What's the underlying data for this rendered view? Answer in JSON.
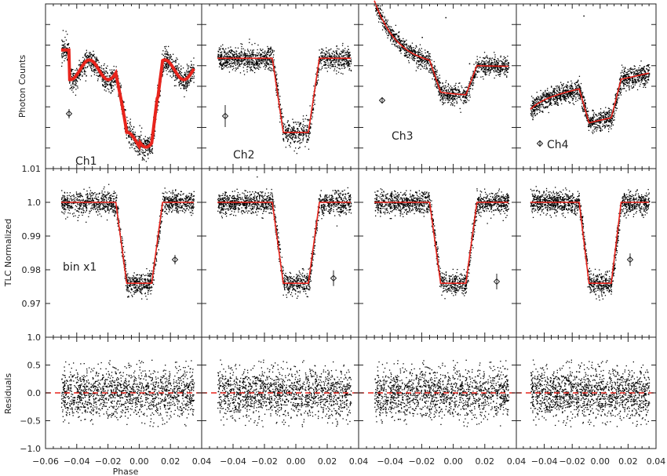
{
  "chart_data": {
    "type": "scatter",
    "xlabel": "Phase",
    "xlim": [
      -0.06,
      0.04
    ],
    "x_ticks": [
      "−0.06",
      "−0.04",
      "−0.02",
      "0.00",
      "0.02",
      "0.04"
    ],
    "x_tick_values": [
      -0.06,
      -0.04,
      -0.02,
      0.0,
      0.02,
      0.04
    ],
    "data_x_range": [
      -0.05,
      0.035
    ],
    "data_colors": {
      "points": "#000000",
      "model": "#e8241c",
      "zero_line": "#e8241c"
    },
    "channels": [
      "Ch1",
      "Ch2",
      "Ch3",
      "Ch4"
    ],
    "rows": [
      {
        "id": "raw",
        "ylabel": "Photon Counts",
        "ticks_labeled": false,
        "panels": [
          {
            "label": "Ch1",
            "model": "red band"
          },
          {
            "label": "Ch2",
            "model": "red line"
          },
          {
            "label": "Ch3",
            "model": "red line"
          },
          {
            "label": "Ch4",
            "model": "red line"
          }
        ]
      },
      {
        "id": "normalized",
        "ylabel": "TLC Normalized",
        "ylim": [
          0.96,
          1.01
        ],
        "y_ticks": [
          "0.97",
          "0.98",
          "0.99",
          "1.0",
          "1.01"
        ],
        "y_tick_values": [
          0.97,
          0.98,
          0.99,
          1.0,
          1.01
        ],
        "annotation": "bin x1",
        "transit_model": {
          "baseline": 1.0,
          "depth_level": 0.976,
          "ingress_start": -0.015,
          "ingress_end": -0.008,
          "egress_start": 0.008,
          "egress_end": 0.015
        }
      },
      {
        "id": "residuals",
        "ylabel": "Residuals",
        "ylim": [
          -1.0,
          1.0
        ],
        "y_ticks": [
          "−1.0",
          "−0.5",
          "0.0",
          "0.5",
          "1.0"
        ],
        "y_tick_values": [
          -1.0,
          -0.5,
          0.0,
          0.5,
          1.0
        ],
        "zero_line": 0.0,
        "scatter_range": [
          -0.6,
          0.6
        ]
      }
    ]
  }
}
